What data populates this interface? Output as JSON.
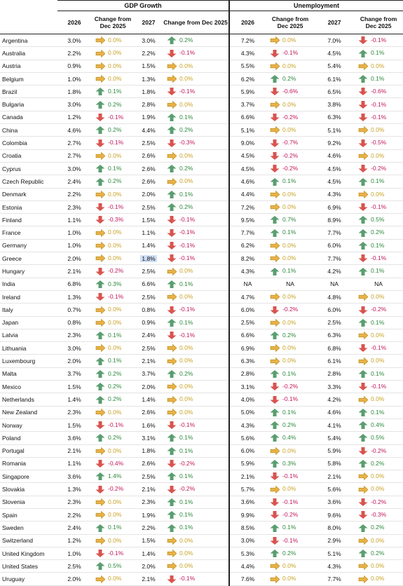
{
  "groups": {
    "gdp": "GDP Growth",
    "unemployment": "Unemployment"
  },
  "columns": {
    "y1": "2026",
    "chg1": "Change from Dec 2025",
    "y2": "2027",
    "chg2": "Change from Dec 2025",
    "y3": "2026",
    "chg3": "Change from Dec 2025",
    "y4": "2027",
    "chg4": "Change from Dec 2025"
  },
  "colors": {
    "up": "#5a9e6f",
    "down": "#d9534f",
    "flat": "#e8b24a",
    "highlight": "#cfe0f7"
  },
  "rows": [
    [
      "Argentina",
      "3.0%",
      "0.0%",
      "3.0%",
      "0.2%",
      "7.2%",
      "0.0%",
      "7.0%",
      "-0.1%"
    ],
    [
      "Australia",
      "2.2%",
      "0.0%",
      "2.2%",
      "-0.1%",
      "4.3%",
      "-0.1%",
      "4.5%",
      "0.1%"
    ],
    [
      "Austria",
      "0.9%",
      "0.0%",
      "1.5%",
      "0.0%",
      "5.5%",
      "0.0%",
      "5.4%",
      "0.0%"
    ],
    [
      "Belgium",
      "1.0%",
      "0.0%",
      "1.3%",
      "0.0%",
      "6.2%",
      "0.2%",
      "6.1%",
      "0.1%"
    ],
    [
      "Brazil",
      "1.8%",
      "0.1%",
      "1.8%",
      "-0.1%",
      "5.9%",
      "-0.6%",
      "6.5%",
      "-0.6%"
    ],
    [
      "Bulgaria",
      "3.0%",
      "0.2%",
      "2.8%",
      "0.0%",
      "3.7%",
      "0.0%",
      "3.8%",
      "-0.1%"
    ],
    [
      "Canada",
      "1.2%",
      "-0.1%",
      "1.9%",
      "0.1%",
      "6.6%",
      "-0.2%",
      "6.3%",
      "-0.1%"
    ],
    [
      "China",
      "4.6%",
      "0.2%",
      "4.4%",
      "0.2%",
      "5.1%",
      "0.0%",
      "5.1%",
      "0.0%"
    ],
    [
      "Colombia",
      "2.7%",
      "-0.1%",
      "2.5%",
      "-0.3%",
      "9.0%",
      "-0.7%",
      "9.2%",
      "-0.5%"
    ],
    [
      "Croatia",
      "2.7%",
      "0.0%",
      "2.6%",
      "0.0%",
      "4.5%",
      "-0.2%",
      "4.6%",
      "0.0%"
    ],
    [
      "Cyprus",
      "3.0%",
      "0.1%",
      "2.6%",
      "0.2%",
      "4.5%",
      "-0.2%",
      "4.5%",
      "-0.2%"
    ],
    [
      "Czech Republic",
      "2.4%",
      "0.2%",
      "2.6%",
      "0.0%",
      "4.6%",
      "0.1%",
      "4.5%",
      "0.1%"
    ],
    [
      "Denmark",
      "2.2%",
      "0.0%",
      "2.0%",
      "0.1%",
      "4.4%",
      "0.0%",
      "4.3%",
      "0.0%"
    ],
    [
      "Estonia",
      "2.3%",
      "-0.1%",
      "2.5%",
      "0.2%",
      "7.2%",
      "0.0%",
      "6.9%",
      "-0.1%"
    ],
    [
      "Finland",
      "1.1%",
      "-0.3%",
      "1.5%",
      "-0.1%",
      "9.5%",
      "0.7%",
      "8.9%",
      "0.5%"
    ],
    [
      "France",
      "1.0%",
      "0.0%",
      "1.1%",
      "-0.1%",
      "7.7%",
      "0.1%",
      "7.7%",
      "0.2%"
    ],
    [
      "Germany",
      "1.0%",
      "0.0%",
      "1.4%",
      "-0.1%",
      "6.2%",
      "0.0%",
      "6.0%",
      "0.1%"
    ],
    [
      "Greece",
      "2.0%",
      "0.0%",
      "1.8%",
      "-0.1%",
      "8.2%",
      "0.0%",
      "7.7%",
      "-0.1%"
    ],
    [
      "Hungary",
      "2.1%",
      "-0.2%",
      "2.5%",
      "0.0%",
      "4.3%",
      "0.1%",
      "4.2%",
      "0.1%"
    ],
    [
      "India",
      "6.8%",
      "0.3%",
      "6.6%",
      "0.1%",
      "NA",
      "NA",
      "NA",
      "NA"
    ],
    [
      "Ireland",
      "1.3%",
      "-0.1%",
      "2.5%",
      "0.0%",
      "4.7%",
      "0.0%",
      "4.8%",
      "0.0%"
    ],
    [
      "Italy",
      "0.7%",
      "0.0%",
      "0.8%",
      "-0.1%",
      "6.0%",
      "-0.2%",
      "6.0%",
      "-0.2%"
    ],
    [
      "Japan",
      "0.8%",
      "0.0%",
      "0.9%",
      "0.1%",
      "2.5%",
      "0.0%",
      "2.5%",
      "0.1%"
    ],
    [
      "Latvia",
      "2.3%",
      "0.1%",
      "2.4%",
      "-0.1%",
      "6.6%",
      "0.2%",
      "6.3%",
      "0.0%"
    ],
    [
      "Lithuania",
      "3.0%",
      "0.0%",
      "2.5%",
      "0.0%",
      "6.9%",
      "0.0%",
      "6.8%",
      "-0.1%"
    ],
    [
      "Luxembourg",
      "2.0%",
      "0.1%",
      "2.1%",
      "0.0%",
      "6.3%",
      "0.0%",
      "6.1%",
      "0.0%"
    ],
    [
      "Malta",
      "3.7%",
      "0.2%",
      "3.7%",
      "0.2%",
      "2.8%",
      "0.1%",
      "2.8%",
      "0.1%"
    ],
    [
      "Mexico",
      "1.5%",
      "0.2%",
      "2.0%",
      "0.0%",
      "3.1%",
      "-0.2%",
      "3.3%",
      "-0.1%"
    ],
    [
      "Netherlands",
      "1.4%",
      "0.2%",
      "1.4%",
      "0.0%",
      "4.0%",
      "-0.1%",
      "4.2%",
      "0.0%"
    ],
    [
      "New Zealand",
      "2.3%",
      "0.0%",
      "2.6%",
      "0.0%",
      "5.0%",
      "0.1%",
      "4.6%",
      "0.1%"
    ],
    [
      "Norway",
      "1.5%",
      "-0.1%",
      "1.6%",
      "-0.1%",
      "4.3%",
      "0.2%",
      "4.1%",
      "0.4%"
    ],
    [
      "Poland",
      "3.6%",
      "0.2%",
      "3.1%",
      "0.1%",
      "5.6%",
      "0.4%",
      "5.4%",
      "0.5%"
    ],
    [
      "Portugal",
      "2.1%",
      "0.0%",
      "1.8%",
      "0.1%",
      "6.0%",
      "0.0%",
      "5.9%",
      "-0.2%"
    ],
    [
      "Romania",
      "1.1%",
      "-0.4%",
      "2.6%",
      "-0.2%",
      "5.9%",
      "0.3%",
      "5.8%",
      "0.2%"
    ],
    [
      "Singapore",
      "3.6%",
      "1.4%",
      "2.5%",
      "0.1%",
      "2.1%",
      "-0.1%",
      "2.1%",
      "0.0%"
    ],
    [
      "Slovakia",
      "1.3%",
      "-0.2%",
      "2.1%",
      "-0.2%",
      "5.7%",
      "0.0%",
      "5.6%",
      "0.0%"
    ],
    [
      "Slovenia",
      "2.3%",
      "0.0%",
      "2.3%",
      "0.1%",
      "3.6%",
      "-0.1%",
      "3.6%",
      "-0.2%"
    ],
    [
      "Spain",
      "2.2%",
      "0.0%",
      "1.9%",
      "0.1%",
      "9.9%",
      "-0.2%",
      "9.6%",
      "-0.3%"
    ],
    [
      "Sweden",
      "2.4%",
      "0.1%",
      "2.2%",
      "0.1%",
      "8.5%",
      "0.1%",
      "8.0%",
      "0.2%"
    ],
    [
      "Switzerland",
      "1.2%",
      "0.0%",
      "1.5%",
      "0.0%",
      "3.0%",
      "-0.1%",
      "2.9%",
      "0.0%"
    ],
    [
      "United Kingdom",
      "1.0%",
      "-0.1%",
      "1.4%",
      "0.0%",
      "5.3%",
      "0.2%",
      "5.1%",
      "0.2%"
    ],
    [
      "United States",
      "2.5%",
      "0.5%",
      "2.0%",
      "0.0%",
      "4.4%",
      "0.0%",
      "4.3%",
      "0.0%"
    ],
    [
      "Uruguay",
      "2.0%",
      "0.0%",
      "2.1%",
      "-0.1%",
      "7.6%",
      "0.0%",
      "7.7%",
      "0.0%"
    ]
  ],
  "highlight_cell": {
    "row": 17,
    "col": 3
  }
}
